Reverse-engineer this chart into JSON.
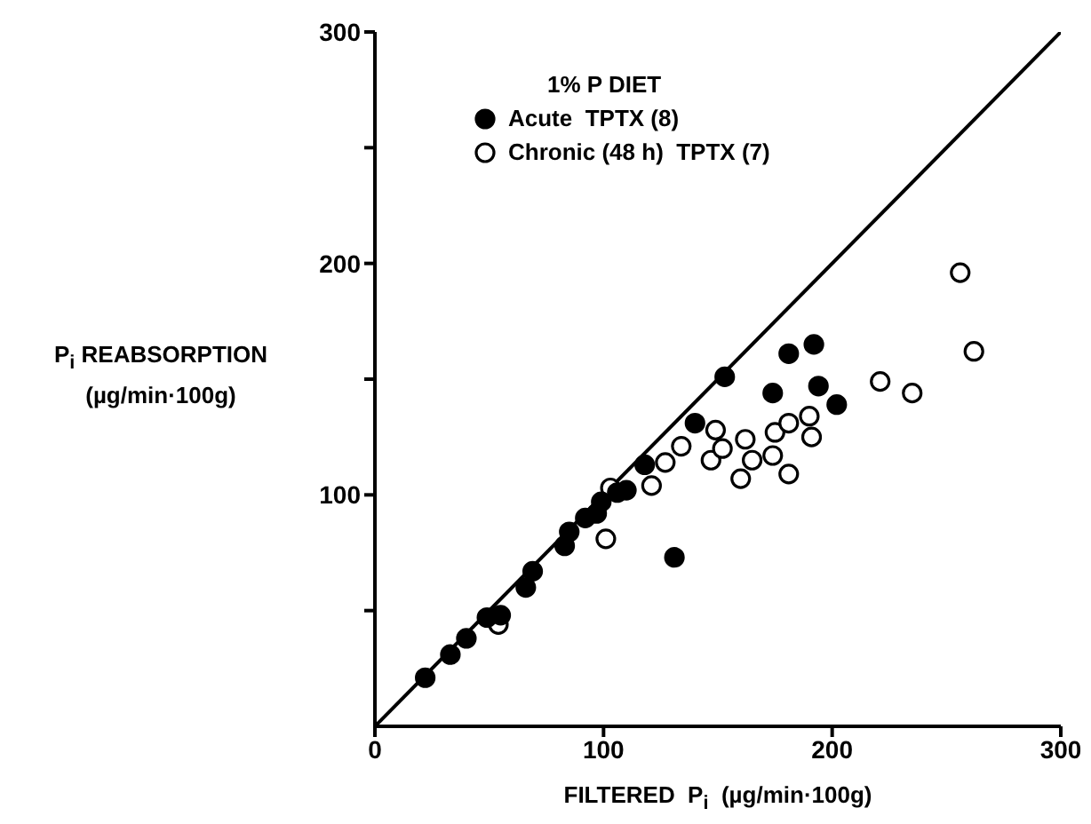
{
  "chart_data": {
    "type": "scatter",
    "xlabel": "FILTERED  P$_{i}$  (µg/min·100g)",
    "ylabel": "P$_{i}$ REABSORPTION\n(µg/min·100g)",
    "legend_title": "1% P DIET",
    "legend": "top left",
    "marker": "circle",
    "grid": false,
    "xlim": [
      0,
      300
    ],
    "xticks": [
      0,
      100,
      200,
      300
    ],
    "ylim": [
      0,
      300
    ],
    "yticks": [
      {
        "value": 50,
        "label": null
      },
      100,
      {
        "value": 150,
        "label": null
      },
      200,
      {
        "value": 250,
        "label": null
      },
      300
    ],
    "series": [
      {
        "name": "Acute  TPTX (8)",
        "color": "#000000",
        "x": [
          22,
          33,
          40,
          49,
          55,
          66,
          69,
          83,
          85,
          92,
          97,
          99,
          106,
          110,
          118,
          140,
          153,
          131,
          174,
          181,
          192,
          194,
          202
        ],
        "values": [
          21,
          31,
          38,
          47,
          48,
          60,
          67,
          78,
          84,
          90,
          92,
          97,
          101,
          102,
          113,
          131,
          151,
          73,
          144,
          161,
          165,
          147,
          139
        ]
      },
      {
        "name": "Chronic (48 h)  TPTX (7)",
        "color": "#ffffff",
        "x": [
          54,
          101,
          103,
          121,
          127,
          134,
          147,
          149,
          152,
          160,
          162,
          165,
          174,
          175,
          181,
          181,
          190,
          191,
          221,
          235,
          256,
          262
        ],
        "values": [
          44,
          81,
          103,
          104,
          114,
          121,
          115,
          128,
          120,
          107,
          124,
          115,
          117,
          127,
          131,
          109,
          134,
          125,
          149,
          144,
          196,
          162
        ]
      },
      {
        "color": "#000000",
        "type": "line",
        "marker": "none",
        "x": [
          0,
          300
        ],
        "values": [
          0,
          300
        ]
      }
    ]
  }
}
